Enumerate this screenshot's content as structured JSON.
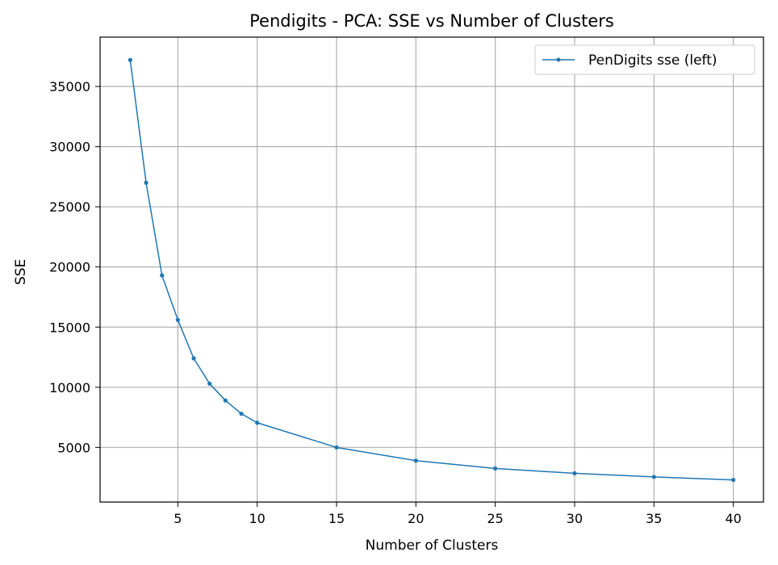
{
  "chart_data": {
    "type": "line",
    "title": "Pendigits - PCA: SSE vs Number of Clusters",
    "xlabel": "Number of Clusters",
    "ylabel": "SSE",
    "xlim": [
      0.1,
      41.9
    ],
    "ylim": [
      460,
      39100
    ],
    "xticks": [
      5,
      10,
      15,
      20,
      25,
      30,
      35,
      40
    ],
    "yticks": [
      5000,
      10000,
      15000,
      20000,
      25000,
      30000,
      35000
    ],
    "grid": true,
    "legend_position": "top-right",
    "series": [
      {
        "name": "PenDigits sse (left)",
        "color": "#1f77b4",
        "x": [
          2,
          3,
          4,
          5,
          6,
          7,
          8,
          9,
          10,
          15,
          20,
          25,
          30,
          35,
          40
        ],
        "y": [
          37200,
          27000,
          19300,
          15600,
          12400,
          10300,
          8900,
          7800,
          7050,
          5000,
          3900,
          3250,
          2850,
          2550,
          2300
        ]
      }
    ]
  }
}
